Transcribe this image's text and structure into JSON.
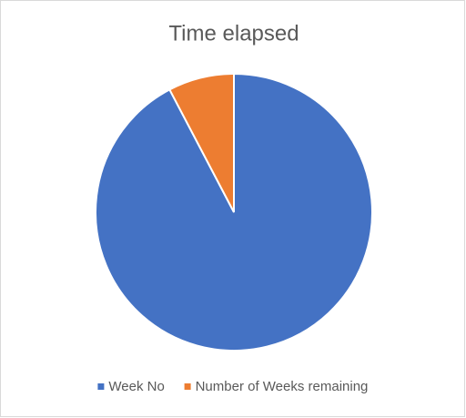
{
  "chart_data": {
    "type": "pie",
    "title": "Time elapsed",
    "categories": [
      "Week No",
      "Number of Weeks remaining"
    ],
    "values": [
      48,
      4
    ],
    "colors": [
      "#4472c4",
      "#ed7d31"
    ],
    "legend": "bottom"
  }
}
